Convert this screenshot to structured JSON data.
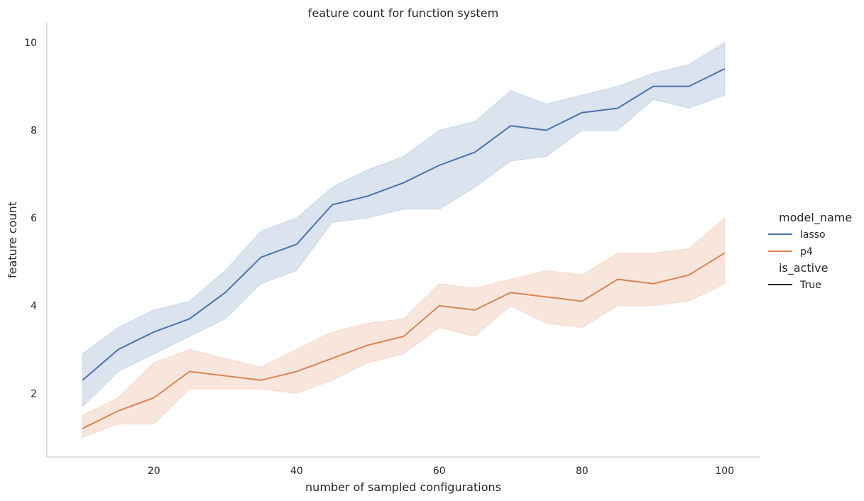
{
  "chart_data": {
    "type": "line",
    "title": "feature count for function system",
    "xlabel": "number of sampled configurations",
    "ylabel": "feature count",
    "xlim": [
      5,
      105
    ],
    "ylim": [
      0.55,
      10.45
    ],
    "xticks": [
      20,
      40,
      60,
      80,
      100
    ],
    "yticks": [
      2,
      4,
      6,
      8,
      10
    ],
    "grid": false,
    "legend": {
      "placement": "right",
      "groups": [
        {
          "title": "model_name",
          "entries": [
            {
              "label": "lasso",
              "color": "#4c72b0"
            },
            {
              "label": "p4",
              "color": "#dd8452"
            }
          ]
        },
        {
          "title": "is_active",
          "entries": [
            {
              "label": "True",
              "color": "#262626"
            }
          ]
        }
      ]
    },
    "x": [
      10,
      15,
      20,
      25,
      30,
      35,
      40,
      45,
      50,
      55,
      60,
      65,
      70,
      75,
      80,
      85,
      90,
      95,
      100
    ],
    "series": [
      {
        "name": "lasso",
        "color": "#4c72b0",
        "values": [
          2.3,
          3.0,
          3.4,
          3.7,
          4.3,
          5.1,
          5.4,
          6.3,
          6.5,
          6.8,
          7.2,
          7.5,
          8.1,
          8.0,
          8.4,
          8.5,
          9.0,
          9.0,
          9.4
        ],
        "lower": [
          1.7,
          2.5,
          2.9,
          3.3,
          3.7,
          4.5,
          4.8,
          5.9,
          6.0,
          6.2,
          6.2,
          6.7,
          7.3,
          7.4,
          8.0,
          8.0,
          8.7,
          8.5,
          8.8
        ],
        "upper": [
          2.9,
          3.5,
          3.9,
          4.1,
          4.8,
          5.7,
          6.0,
          6.7,
          7.1,
          7.4,
          8.0,
          8.2,
          8.9,
          8.6,
          8.8,
          9.0,
          9.3,
          9.5,
          10.0
        ]
      },
      {
        "name": "p4",
        "color": "#dd8452",
        "values": [
          1.2,
          1.6,
          1.9,
          2.5,
          2.4,
          2.3,
          2.5,
          2.8,
          3.1,
          3.3,
          4.0,
          3.9,
          4.3,
          4.2,
          4.1,
          4.6,
          4.5,
          4.7,
          5.2
        ],
        "lower": [
          1.0,
          1.3,
          1.3,
          2.1,
          2.1,
          2.1,
          2.0,
          2.3,
          2.7,
          2.9,
          3.5,
          3.3,
          4.0,
          3.6,
          3.5,
          4.0,
          4.0,
          4.1,
          4.5
        ],
        "upper": [
          1.5,
          1.9,
          2.7,
          3.0,
          2.8,
          2.6,
          3.0,
          3.4,
          3.6,
          3.7,
          4.5,
          4.4,
          4.6,
          4.8,
          4.7,
          5.2,
          5.2,
          5.3,
          6.0
        ]
      }
    ]
  }
}
